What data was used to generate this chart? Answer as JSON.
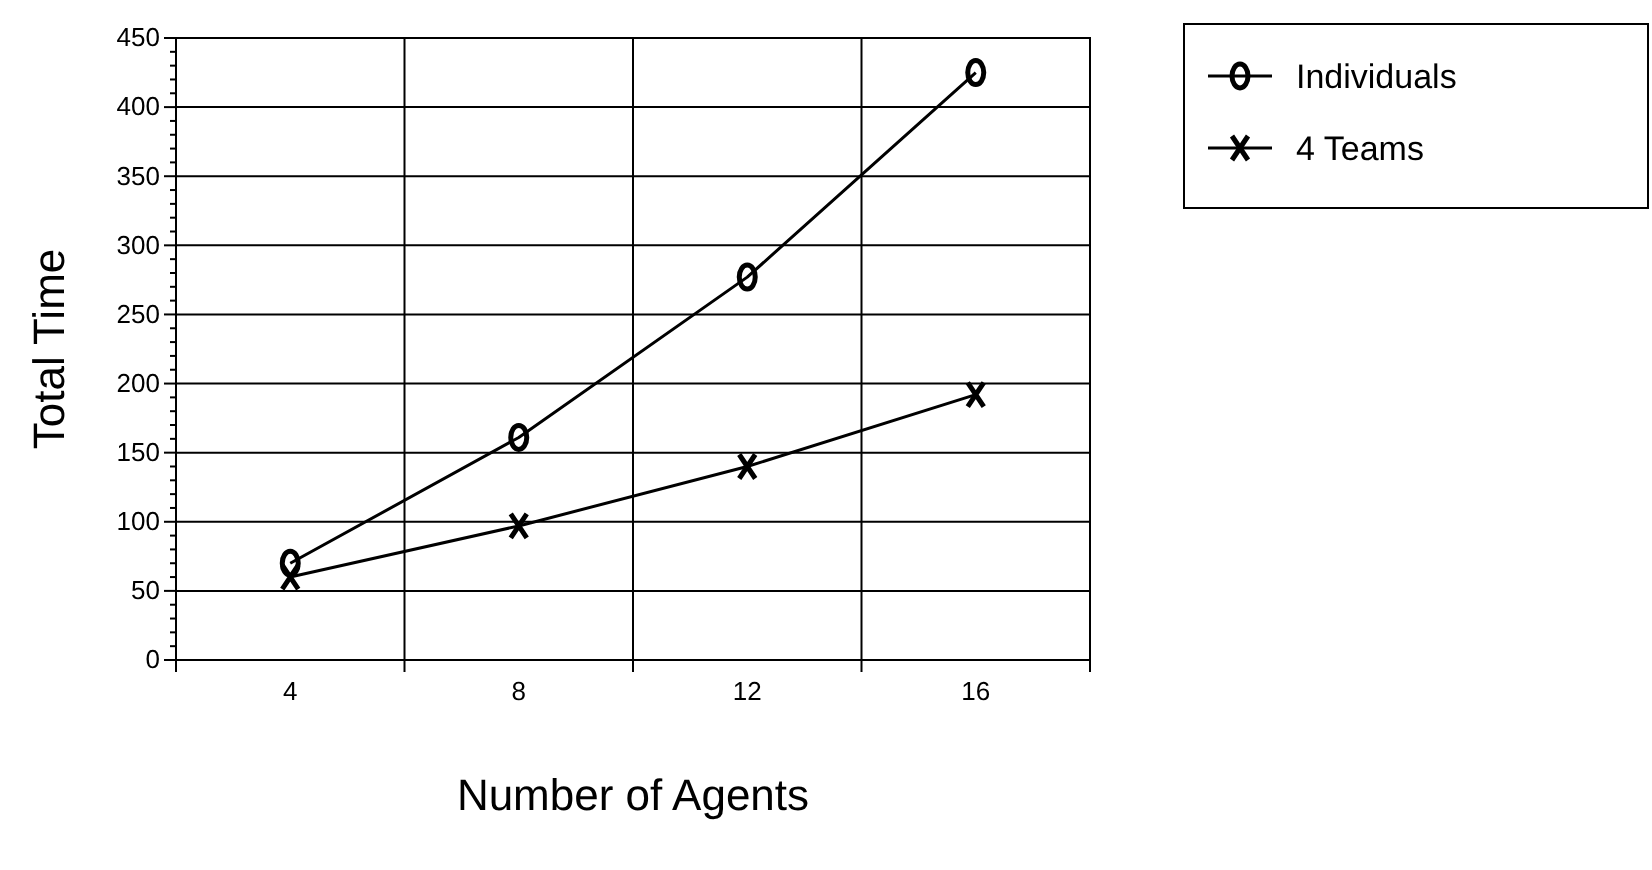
{
  "chart_data": {
    "type": "line",
    "xlabel": "Number of Agents",
    "ylabel": "Total Time",
    "categories": [
      "4",
      "8",
      "12",
      "16"
    ],
    "series": [
      {
        "name": "Individuals",
        "color": "#000000",
        "values": [
          70,
          161,
          277,
          425
        ],
        "marker": "circle"
      },
      {
        "name": "4 Teams",
        "color": "#000000",
        "values": [
          60,
          97,
          140,
          192
        ],
        "marker": "cross"
      }
    ],
    "ylim": [
      0,
      450
    ],
    "yticks": [
      0,
      {
        "value": 10,
        "label": null
      },
      {
        "value": 20,
        "label": null
      },
      {
        "value": 30,
        "label": null
      },
      {
        "value": 40,
        "label": null
      },
      50,
      {
        "value": 60,
        "label": null
      },
      {
        "value": 70,
        "label": null
      },
      {
        "value": 80,
        "label": null
      },
      {
        "value": 90,
        "label": null
      },
      100,
      {
        "value": 110,
        "label": null
      },
      {
        "value": 120,
        "label": null
      },
      {
        "value": 130,
        "label": null
      },
      {
        "value": 140,
        "label": null
      },
      150,
      {
        "value": 160,
        "label": null
      },
      {
        "value": 170,
        "label": null
      },
      {
        "value": 180,
        "label": null
      },
      {
        "value": 190,
        "label": null
      },
      200,
      {
        "value": 210,
        "label": null
      },
      {
        "value": 220,
        "label": null
      },
      {
        "value": 230,
        "label": null
      },
      {
        "value": 240,
        "label": null
      },
      250,
      {
        "value": 260,
        "label": null
      },
      {
        "value": 270,
        "label": null
      },
      {
        "value": 280,
        "label": null
      },
      {
        "value": 290,
        "label": null
      },
      300,
      {
        "value": 310,
        "label": null
      },
      {
        "value": 320,
        "label": null
      },
      {
        "value": 330,
        "label": null
      },
      {
        "value": 340,
        "label": null
      },
      350,
      {
        "value": 360,
        "label": null
      },
      {
        "value": 370,
        "label": null
      },
      {
        "value": 380,
        "label": null
      },
      {
        "value": 390,
        "label": null
      },
      400,
      {
        "value": 410,
        "label": null
      },
      {
        "value": 420,
        "label": null
      },
      {
        "value": 430,
        "label": null
      },
      {
        "value": 440,
        "label": null
      },
      450
    ],
    "grid": true,
    "legend": "top right",
    "line_style": "solid"
  }
}
